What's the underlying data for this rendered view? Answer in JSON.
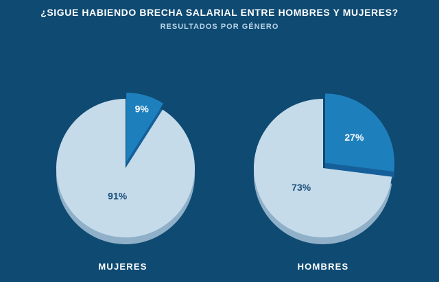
{
  "title": "¿SIGUE HABIENDO BRECHA SALARIAL ENTRE HOMBRES Y MUJERES?",
  "subtitle": "RESULTADOS POR GÉNERO",
  "colors": {
    "background": "#0e4a72",
    "si": "#1e7fbd",
    "si_side": "#15609a",
    "no": "#c6dbea",
    "no_side": "#8fb0c8",
    "label_dark": "#1b4f7a",
    "label_light": "#ffffff"
  },
  "chart_data": [
    {
      "type": "pie",
      "category": "MUJERES",
      "slices": [
        {
          "value": 9,
          "label": "9%"
        },
        {
          "value": 91,
          "label": "91%"
        }
      ]
    },
    {
      "type": "pie",
      "category": "HOMBRES",
      "slices": [
        {
          "value": 27,
          "label": "27%"
        },
        {
          "value": 73,
          "label": "73%"
        }
      ]
    }
  ]
}
